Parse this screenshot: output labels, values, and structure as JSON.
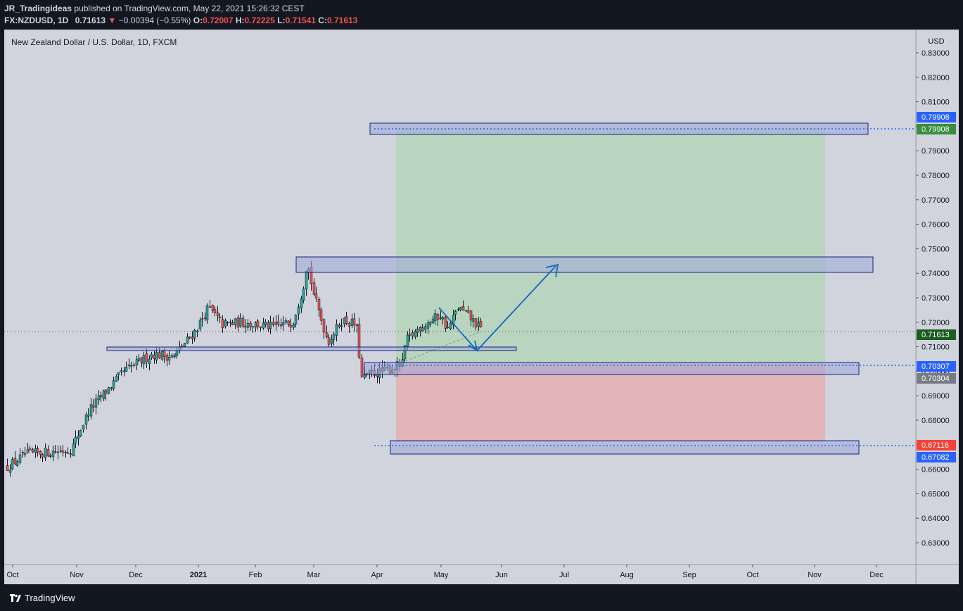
{
  "header": {
    "author": "JR_Tradingideas",
    "published_text": "published on TradingView.com, May 22, 2021 15:26:32 CEST",
    "symbol": "FX:NZDUSD, 1D",
    "last": "0.71613",
    "change": "−0.00394 (−0.55%)",
    "open_label": "O:",
    "open": "0.72007",
    "high_label": "H:",
    "high": "0.72225",
    "low_label": "L:",
    "low": "0.71541",
    "close_label": "C:",
    "close": "0.71613"
  },
  "chart": {
    "title": "New Zealand Dollar / U.S. Dollar, 1D, FXCM",
    "currency": "USD",
    "price_scale": [
      "0.83000",
      "0.82000",
      "0.81000",
      "0.80000",
      "0.79000",
      "0.78000",
      "0.77000",
      "0.76000",
      "0.75000",
      "0.74000",
      "0.73000",
      "0.72000",
      "0.71000",
      "0.70000",
      "0.69000",
      "0.68000",
      "0.67000",
      "0.66000",
      "0.65000",
      "0.64000",
      "0.63000"
    ],
    "time_axis": [
      "Oct",
      "Nov",
      "Dec",
      "2021",
      "Feb",
      "Mar",
      "Apr",
      "May",
      "Jun",
      "Jul",
      "Aug",
      "Sep",
      "Oct",
      "Nov",
      "Dec"
    ],
    "price_badges": [
      {
        "text": "0.79908",
        "bg": "#2962ff"
      },
      {
        "text": "0.79908",
        "bg": "#388e3c"
      },
      {
        "text": "0.71613",
        "bg": "#1b5e20"
      },
      {
        "text": "0.70307",
        "bg": "#2962ff"
      },
      {
        "text": "0.70304",
        "bg": "#787b86"
      },
      {
        "text": "0.67116",
        "bg": "#f44336"
      },
      {
        "text": "0.67082",
        "bg": "#2962ff"
      }
    ],
    "colors": {
      "bull": "#26a69a",
      "bear": "#ef5350",
      "zone_fill": "#9fa8da",
      "zone_stroke": "#1a237e",
      "profit_fill": "#a5d6a7",
      "loss_fill": "#ef9a9a",
      "arrow": "#1565c0"
    }
  },
  "footer": {
    "brand": "TradingView"
  }
}
